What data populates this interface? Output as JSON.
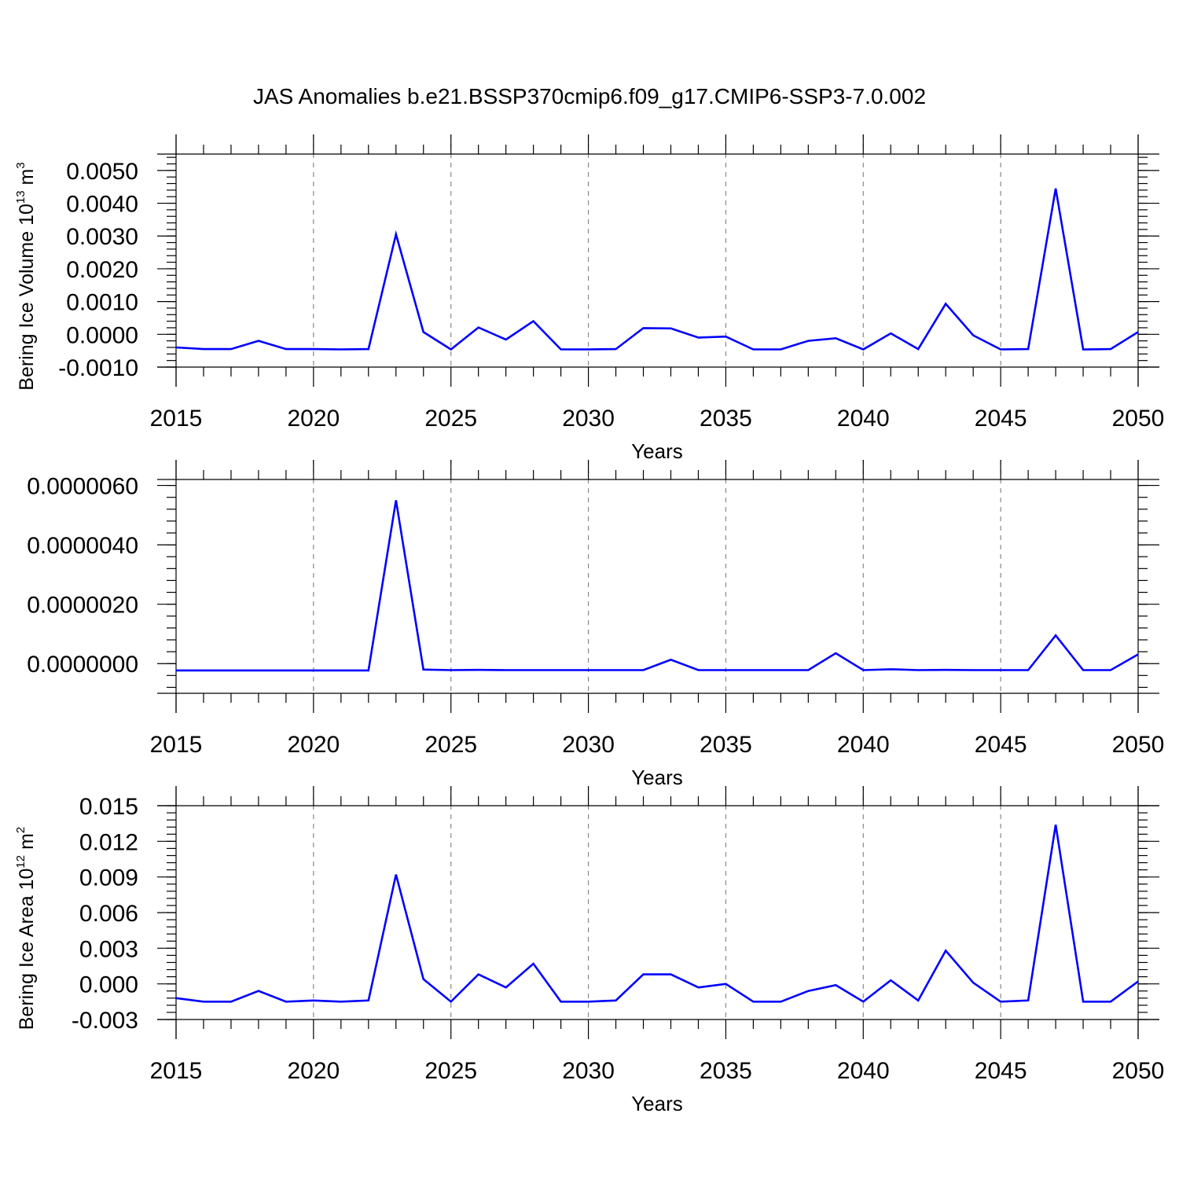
{
  "figure": {
    "title": "JAS Anomalies b.e21.BSSP370cmip6.f09_g17.CMIP6-SSP3-7.0.002",
    "line_color": "#0000ff"
  },
  "chart_data": [
    {
      "type": "line",
      "xlabel": "Years",
      "ylabel": "Bering Ice Volume 10",
      "ylabel_exponent": "13",
      "ylabel_unit": "m",
      "ylabel_unit_exponent": "3",
      "xlim": [
        2015,
        2050
      ],
      "ylim": [
        -0.001,
        0.0055
      ],
      "x_ticks": [
        2015,
        2020,
        2025,
        2030,
        2035,
        2040,
        2045,
        2050
      ],
      "y_ticks": [
        -0.001,
        0.0,
        0.001,
        0.002,
        0.003,
        0.004,
        0.005
      ],
      "y_tick_labels": [
        "-0.0010",
        "0.0000",
        "0.0010",
        "0.0020",
        "0.0030",
        "0.0040",
        "0.0050"
      ],
      "grid": "vertical dashed at major x ticks",
      "x": [
        2015,
        2016,
        2017,
        2018,
        2019,
        2020,
        2021,
        2022,
        2023,
        2024,
        2025,
        2026,
        2027,
        2028,
        2029,
        2030,
        2031,
        2032,
        2033,
        2034,
        2035,
        2036,
        2037,
        2038,
        2039,
        2040,
        2041,
        2042,
        2043,
        2044,
        2045,
        2046,
        2047,
        2048,
        2049,
        2050
      ],
      "values": [
        -0.0004,
        -0.00045,
        -0.00045,
        -0.0002,
        -0.00045,
        -0.00045,
        -0.00046,
        -0.00045,
        0.00305,
        7e-05,
        -0.00046,
        0.00021,
        -0.00016,
        0.0004,
        -0.00046,
        -0.00046,
        -0.00045,
        0.00019,
        0.00018,
        -0.0001,
        -7e-05,
        -0.00046,
        -0.00046,
        -0.0002,
        -0.00012,
        -0.00046,
        3e-05,
        -0.00045,
        0.00093,
        -3e-05,
        -0.00046,
        -0.00045,
        0.00445,
        -0.00046,
        -0.00045,
        7e-05
      ]
    },
    {
      "type": "line",
      "xlabel": "Years",
      "ylabel": "",
      "xlim": [
        2015,
        2050
      ],
      "ylim": [
        -1e-06,
        6.2e-06
      ],
      "x_ticks": [
        2015,
        2020,
        2025,
        2030,
        2035,
        2040,
        2045,
        2050
      ],
      "y_ticks": [
        0.0,
        2e-06,
        4e-06,
        6e-06
      ],
      "y_tick_labels": [
        "0.0000000",
        "0.0000020",
        "0.0000040",
        "0.0000060"
      ],
      "grid": "vertical dashed at major x ticks",
      "x": [
        2015,
        2016,
        2017,
        2018,
        2019,
        2020,
        2021,
        2022,
        2023,
        2024,
        2025,
        2026,
        2027,
        2028,
        2029,
        2030,
        2031,
        2032,
        2033,
        2034,
        2035,
        2036,
        2037,
        2038,
        2039,
        2040,
        2041,
        2042,
        2043,
        2044,
        2045,
        2046,
        2047,
        2048,
        2049,
        2050
      ],
      "values": [
        -2.3e-07,
        -2.3e-07,
        -2.3e-07,
        -2.3e-07,
        -2.3e-07,
        -2.3e-07,
        -2.3e-07,
        -2.3e-07,
        5.5e-06,
        -2e-07,
        -2.2e-07,
        -2.1e-07,
        -2.2e-07,
        -2.2e-07,
        -2.2e-07,
        -2.2e-07,
        -2.2e-07,
        -2.2e-07,
        1.3e-07,
        -2.2e-07,
        -2.2e-07,
        -2.2e-07,
        -2.2e-07,
        -2.2e-07,
        3.5e-07,
        -2.2e-07,
        -1.9e-07,
        -2.2e-07,
        -2.1e-07,
        -2.2e-07,
        -2.2e-07,
        -2.2e-07,
        9.5e-07,
        -2.2e-07,
        -2.2e-07,
        3.1e-07
      ]
    },
    {
      "type": "line",
      "xlabel": "Years",
      "ylabel": "Bering Ice Area 10",
      "ylabel_exponent": "12",
      "ylabel_unit": "m",
      "ylabel_unit_exponent": "2",
      "xlim": [
        2015,
        2050
      ],
      "ylim": [
        -0.003,
        0.015
      ],
      "x_ticks": [
        2015,
        2020,
        2025,
        2030,
        2035,
        2040,
        2045,
        2050
      ],
      "y_ticks": [
        -0.003,
        0.0,
        0.003,
        0.006,
        0.009,
        0.012,
        0.015
      ],
      "y_tick_labels": [
        "-0.003",
        "0.000",
        "0.003",
        "0.006",
        "0.009",
        "0.012",
        "0.015"
      ],
      "grid": "vertical dashed at major x ticks",
      "x": [
        2015,
        2016,
        2017,
        2018,
        2019,
        2020,
        2021,
        2022,
        2023,
        2024,
        2025,
        2026,
        2027,
        2028,
        2029,
        2030,
        2031,
        2032,
        2033,
        2034,
        2035,
        2036,
        2037,
        2038,
        2039,
        2040,
        2041,
        2042,
        2043,
        2044,
        2045,
        2046,
        2047,
        2048,
        2049,
        2050
      ],
      "values": [
        -0.0012,
        -0.0015,
        -0.0015,
        -0.0006,
        -0.0015,
        -0.0014,
        -0.0015,
        -0.0014,
        0.0092,
        0.0004,
        -0.0015,
        0.0008,
        -0.0003,
        0.0017,
        -0.0015,
        -0.0015,
        -0.0014,
        0.0008,
        0.0008,
        -0.0003,
        0.0,
        -0.0015,
        -0.0015,
        -0.0006,
        -0.0001,
        -0.0015,
        0.0003,
        -0.0014,
        0.0028,
        0.0001,
        -0.0015,
        -0.0014,
        0.0134,
        -0.0015,
        -0.0015,
        0.0002
      ]
    }
  ]
}
